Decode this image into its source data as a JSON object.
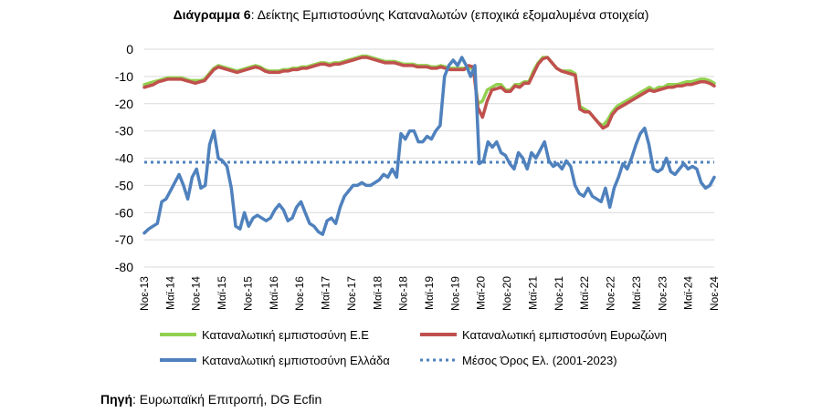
{
  "title": {
    "prefix": "Διάγραμμα 6",
    "text": ": Δείκτης Εμπιστοσύνης Καταναλωτών (εποχικά εξομαλυμένα στοιχεία)"
  },
  "source": {
    "prefix": "Πηγή",
    "text": ": Ευρωπαϊκή Επιτροπή, DG Ecfin"
  },
  "chart_data": {
    "type": "line",
    "ylim": [
      -80,
      0
    ],
    "yticks": [
      0,
      -10,
      -20,
      -30,
      -40,
      -50,
      -60,
      -70,
      -80
    ],
    "xlabels": [
      "Νοε-13",
      "Μαϊ-14",
      "Νοε-14",
      "Μαϊ-15",
      "Νοε-15",
      "Μαϊ-16",
      "Νοε-16",
      "Μαϊ-17",
      "Νοε-17",
      "Μαϊ-18",
      "Νοε-18",
      "Μαϊ-19",
      "Νοε-19",
      "Μαϊ-20",
      "Νοε-20",
      "Μαϊ-21",
      "Νοε-21",
      "Μαϊ-22",
      "Νοε-22",
      "Μαϊ-23",
      "Νοε-23",
      "Μαϊ-24",
      "Νοε-24"
    ],
    "legend_position": "bottom",
    "series": [
      {
        "name": "Καταναλωτική εμπιστοσύνη Ε.Ε",
        "color": "#92D050",
        "style": "solid",
        "values": [
          -13,
          -12.5,
          -12,
          -11.5,
          -11,
          -10.5,
          -10.5,
          -10.5,
          -10.5,
          -11,
          -11.5,
          -11.5,
          -11.5,
          -11,
          -9,
          -7,
          -6,
          -6.5,
          -7,
          -7.5,
          -8,
          -7.5,
          -7,
          -6.5,
          -6,
          -6.5,
          -7.5,
          -8,
          -8,
          -8,
          -7.5,
          -7.5,
          -7,
          -7,
          -6.5,
          -6.5,
          -6,
          -5.5,
          -5,
          -5,
          -5.5,
          -5,
          -5,
          -4.5,
          -4,
          -3.5,
          -3,
          -2.5,
          -2.5,
          -3,
          -3.5,
          -4,
          -4.5,
          -4.5,
          -4.5,
          -5,
          -5.5,
          -5.5,
          -5.5,
          -6,
          -6,
          -6,
          -6.5,
          -6.5,
          -6,
          -6.5,
          -7,
          -7,
          -7,
          -7,
          -7,
          -7,
          -20,
          -19,
          -15,
          -14,
          -13,
          -13,
          -15,
          -15,
          -13,
          -13,
          -12,
          -12,
          -8,
          -5,
          -3,
          -3,
          -5,
          -7,
          -8,
          -8,
          -8,
          -9,
          -21,
          -22,
          -23,
          -25,
          -27,
          -28,
          -26,
          -23,
          -21,
          -20,
          -19,
          -18,
          -17,
          -16,
          -15,
          -14,
          -15,
          -14,
          -14,
          -13,
          -13,
          -13,
          -12.5,
          -12,
          -12,
          -11.5,
          -11,
          -11,
          -11.5,
          -12.5
        ]
      },
      {
        "name": "Καταναλωτική εμπιστοσύνη Ευρωζώνη",
        "color": "#C0504D",
        "style": "solid",
        "values": [
          -14,
          -13.5,
          -13,
          -12,
          -11.5,
          -11,
          -11,
          -11,
          -11,
          -11.5,
          -12,
          -12.5,
          -12,
          -11.5,
          -9.5,
          -7.5,
          -6.5,
          -7,
          -7.5,
          -8,
          -8.5,
          -8,
          -7.5,
          -7,
          -6.5,
          -7,
          -8,
          -8.5,
          -8.5,
          -8.5,
          -8,
          -8,
          -7.5,
          -7.5,
          -7,
          -7,
          -6.5,
          -6,
          -5.5,
          -5.5,
          -6,
          -5.5,
          -5.5,
          -5,
          -4.5,
          -4,
          -3.5,
          -3,
          -3,
          -3.5,
          -4,
          -4.5,
          -5,
          -5,
          -5,
          -5.5,
          -6,
          -6,
          -6,
          -6.5,
          -6.5,
          -6.5,
          -7,
          -7,
          -6.5,
          -7,
          -7.5,
          -7.5,
          -7.5,
          -7.5,
          -6,
          -6.5,
          -21.5,
          -25,
          -19,
          -15,
          -14.5,
          -14,
          -15.5,
          -15.5,
          -13.5,
          -14,
          -12.5,
          -12.5,
          -9,
          -5.5,
          -3.5,
          -3,
          -5,
          -7,
          -8,
          -8.5,
          -9,
          -9.5,
          -22,
          -23,
          -23,
          -25,
          -27,
          -29,
          -28,
          -24,
          -22,
          -21,
          -20,
          -19,
          -18,
          -17,
          -16,
          -15,
          -15.5,
          -15,
          -14.5,
          -14,
          -14,
          -13.5,
          -13.5,
          -13,
          -13,
          -12.5,
          -12,
          -12,
          -12.5,
          -13.5
        ]
      },
      {
        "name": "Καταναλωτική εμπιστοσύνη Ελλάδα",
        "color": "#4F81BD",
        "style": "solid",
        "values": [
          -67.5,
          -66,
          -65,
          -64,
          -56,
          -55,
          -52,
          -49,
          -46,
          -50,
          -55,
          -47,
          -44,
          -51,
          -50,
          -35,
          -30,
          -40,
          -41,
          -43,
          -51,
          -65,
          -66,
          -60,
          -65,
          -62,
          -61,
          -62,
          -63,
          -62,
          -59,
          -57,
          -59,
          -63,
          -62,
          -58,
          -56,
          -60,
          -64,
          -65,
          -67,
          -68,
          -63,
          -62,
          -64,
          -58,
          -54,
          -52,
          -50,
          -50,
          -49,
          -50,
          -50,
          -49,
          -48,
          -46,
          -47,
          -44,
          -47,
          -31,
          -33,
          -30,
          -30,
          -34,
          -34,
          -32,
          -33,
          -30,
          -28,
          -10,
          -6,
          -4,
          -6,
          -3,
          -6,
          -10,
          -6,
          -42,
          -41,
          -34,
          -36,
          -34,
          -38,
          -39,
          -42,
          -44,
          -38,
          -40,
          -44,
          -38,
          -40,
          -37,
          -34,
          -41,
          -43,
          -42,
          -44,
          -41,
          -43,
          -50,
          -53,
          -54,
          -51,
          -54,
          -55,
          -56,
          -51,
          -58,
          -51,
          -47,
          -42,
          -44,
          -40,
          -35,
          -31,
          -29,
          -35,
          -44,
          -45,
          -44,
          -40,
          -45,
          -46,
          -44,
          -42,
          -44,
          -43,
          -44,
          -49,
          -51,
          -50,
          -47
        ]
      },
      {
        "name": "Μέσος Όρος Ελ. (2001-2023)",
        "color": "#4F81BD",
        "style": "dotted",
        "values": [
          -41.5
        ]
      }
    ]
  }
}
